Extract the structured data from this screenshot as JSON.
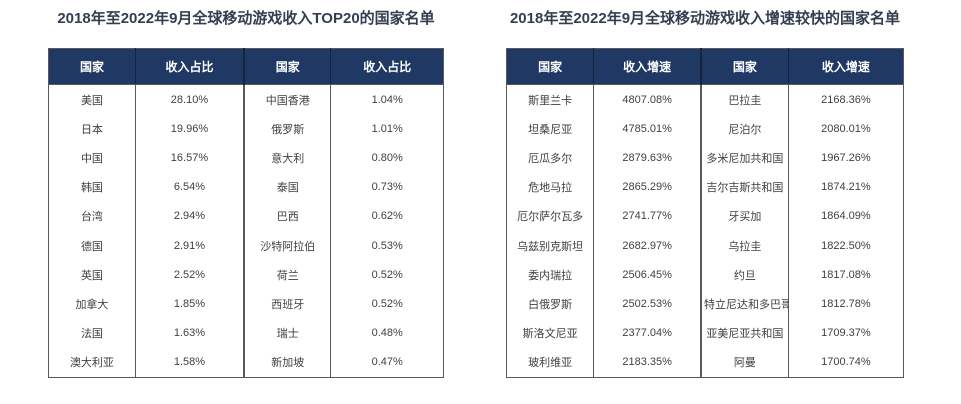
{
  "colors": {
    "header_bg": "#1F3864",
    "header_text": "#FFFFFF",
    "title_text": "#333F50",
    "cell_text": "#3F3F3F",
    "border": "#595959",
    "background": "#FFFFFF"
  },
  "chart_data": [
    {
      "type": "table",
      "title": "2018年至2022年9月全球移动游戏收入TOP20的国家名单",
      "columns": [
        "国家",
        "收入占比",
        "国家",
        "收入占比"
      ],
      "rows": [
        [
          "美国",
          "28.10%",
          "中国香港",
          "1.04%"
        ],
        [
          "日本",
          "19.96%",
          "俄罗斯",
          "1.01%"
        ],
        [
          "中国",
          "16.57%",
          "意大利",
          "0.80%"
        ],
        [
          "韩国",
          "6.54%",
          "泰国",
          "0.73%"
        ],
        [
          "台湾",
          "2.94%",
          "巴西",
          "0.62%"
        ],
        [
          "德国",
          "2.91%",
          "沙特阿拉伯",
          "0.53%"
        ],
        [
          "英国",
          "2.52%",
          "荷兰",
          "0.52%"
        ],
        [
          "加拿大",
          "1.85%",
          "西班牙",
          "0.52%"
        ],
        [
          "法国",
          "1.63%",
          "瑞士",
          "0.48%"
        ],
        [
          "澳大利亚",
          "1.58%",
          "新加坡",
          "0.47%"
        ]
      ]
    },
    {
      "type": "table",
      "title": "2018年至2022年9月全球移动游戏收入增速较快的国家名单",
      "columns": [
        "国家",
        "收入增速",
        "国家",
        "收入增速"
      ],
      "rows": [
        [
          "斯里兰卡",
          "4807.08%",
          "巴拉圭",
          "2168.36%"
        ],
        [
          "坦桑尼亚",
          "4785.01%",
          "尼泊尔",
          "2080.01%"
        ],
        [
          "厄瓜多尔",
          "2879.63%",
          "多米尼加共和国",
          "1967.26%"
        ],
        [
          "危地马拉",
          "2865.29%",
          "吉尔吉斯共和国",
          "1874.21%"
        ],
        [
          "厄尔萨尔瓦多",
          "2741.77%",
          "牙买加",
          "1864.09%"
        ],
        [
          "乌兹别克斯坦",
          "2682.97%",
          "乌拉圭",
          "1822.50%"
        ],
        [
          "委内瑞拉",
          "2506.45%",
          "约旦",
          "1817.08%"
        ],
        [
          "白俄罗斯",
          "2502.53%",
          "特立尼达和多巴哥",
          "1812.78%"
        ],
        [
          "斯洛文尼亚",
          "2377.04%",
          "亚美尼亚共和国",
          "1709.37%"
        ],
        [
          "玻利维亚",
          "2183.35%",
          "阿曼",
          "1700.74%"
        ]
      ]
    }
  ]
}
